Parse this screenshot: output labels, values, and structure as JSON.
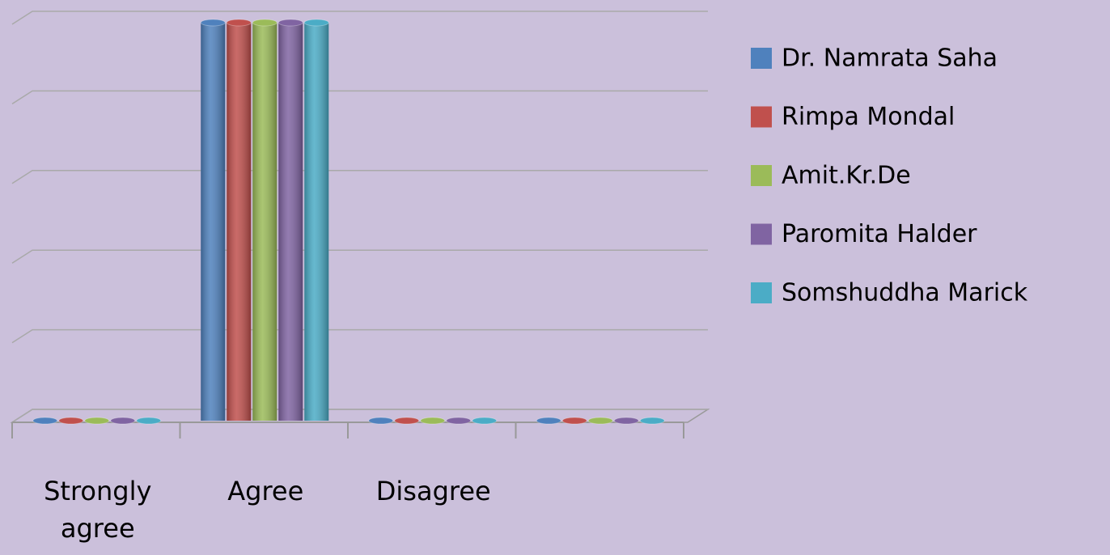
{
  "chart_data": {
    "type": "bar3d",
    "categories": [
      "Strongly agree",
      "Agree",
      "Disagree",
      null
    ],
    "series": [
      {
        "name": "Dr. Namrata Saha",
        "color": "#4f81bd",
        "values": [
          0,
          5,
          0,
          0
        ]
      },
      {
        "name": "Rimpa Mondal",
        "color": "#c0504d",
        "values": [
          0,
          5,
          0,
          0
        ]
      },
      {
        "name": "Amit.Kr.De",
        "color": "#9bbb59",
        "values": [
          0,
          5,
          0,
          0
        ]
      },
      {
        "name": "Paromita Halder",
        "color": "#8064a2",
        "values": [
          0,
          5,
          0,
          0
        ]
      },
      {
        "name": "Somshuddha Marick",
        "color": "#4bacc6",
        "values": [
          0,
          5,
          0,
          0
        ]
      }
    ],
    "ylim": [
      0,
      5
    ],
    "yticks": [
      0,
      1,
      2,
      3,
      4,
      5
    ],
    "grid": true,
    "legend": "right"
  }
}
